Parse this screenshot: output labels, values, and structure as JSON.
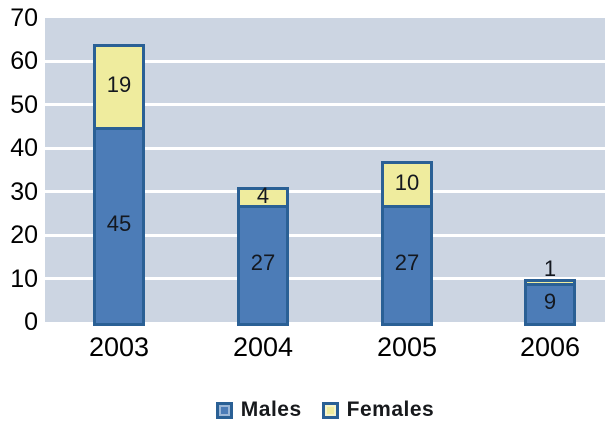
{
  "chart_data": {
    "type": "bar",
    "stacked": true,
    "title": "",
    "xlabel": "",
    "ylabel": "",
    "categories": [
      "2003",
      "2004",
      "2005",
      "2006"
    ],
    "series": [
      {
        "name": "Males",
        "values": [
          45,
          27,
          27,
          9
        ],
        "fill": "#4c7cb7",
        "border": "#2a6095"
      },
      {
        "name": "Females",
        "values": [
          19,
          4,
          10,
          1
        ],
        "fill": "#efec9e",
        "border": "#2a6095"
      }
    ],
    "ylim": [
      0,
      70
    ],
    "yticks": [
      0,
      10,
      20,
      30,
      40,
      50,
      60,
      70
    ],
    "grid": "horizontal",
    "legend_position": "bottom",
    "data_labels": true
  },
  "colors": {
    "plot_bg": "#ccd5e2",
    "gridline": "#ffffff",
    "axis_text": "#000000",
    "data_label_text": "#14181f",
    "page_bg": "#ffffff"
  }
}
